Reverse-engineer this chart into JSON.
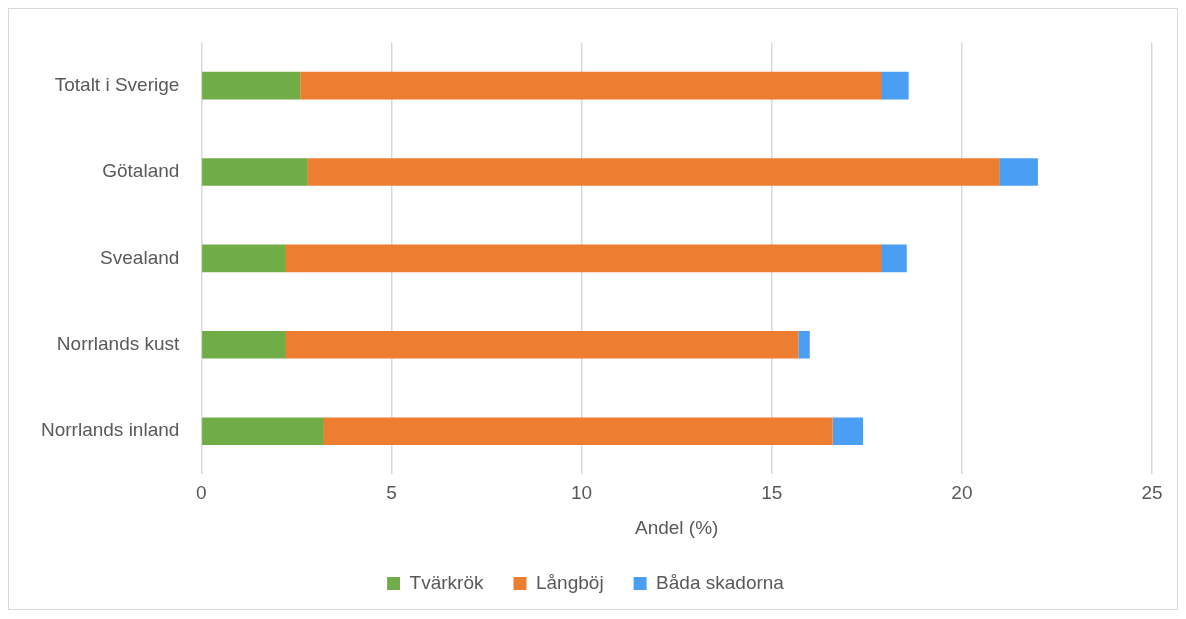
{
  "chart_data": {
    "type": "bar",
    "orientation": "horizontal",
    "stacked": true,
    "xlabel": "Andel (%)",
    "categories": [
      "Totalt i Sverige",
      "Götaland",
      "Svealand",
      "Norrlands kust",
      "Norrlands inland"
    ],
    "series": [
      {
        "name": "Tvärkrök",
        "color": "#70ad47",
        "values": [
          2.6,
          2.8,
          2.2,
          2.2,
          3.2
        ]
      },
      {
        "name": "Långböj",
        "color": "#ed7d31",
        "values": [
          15.3,
          18.2,
          15.7,
          13.5,
          13.4
        ]
      },
      {
        "name": "Båda skadorna",
        "color": "#4a9ff5",
        "values": [
          0.7,
          1.0,
          0.65,
          0.3,
          0.8
        ]
      }
    ],
    "xlim": [
      0,
      25
    ],
    "xticks": [
      0,
      5,
      10,
      15,
      20,
      25
    ],
    "grid": "x",
    "legend": "bottom"
  }
}
